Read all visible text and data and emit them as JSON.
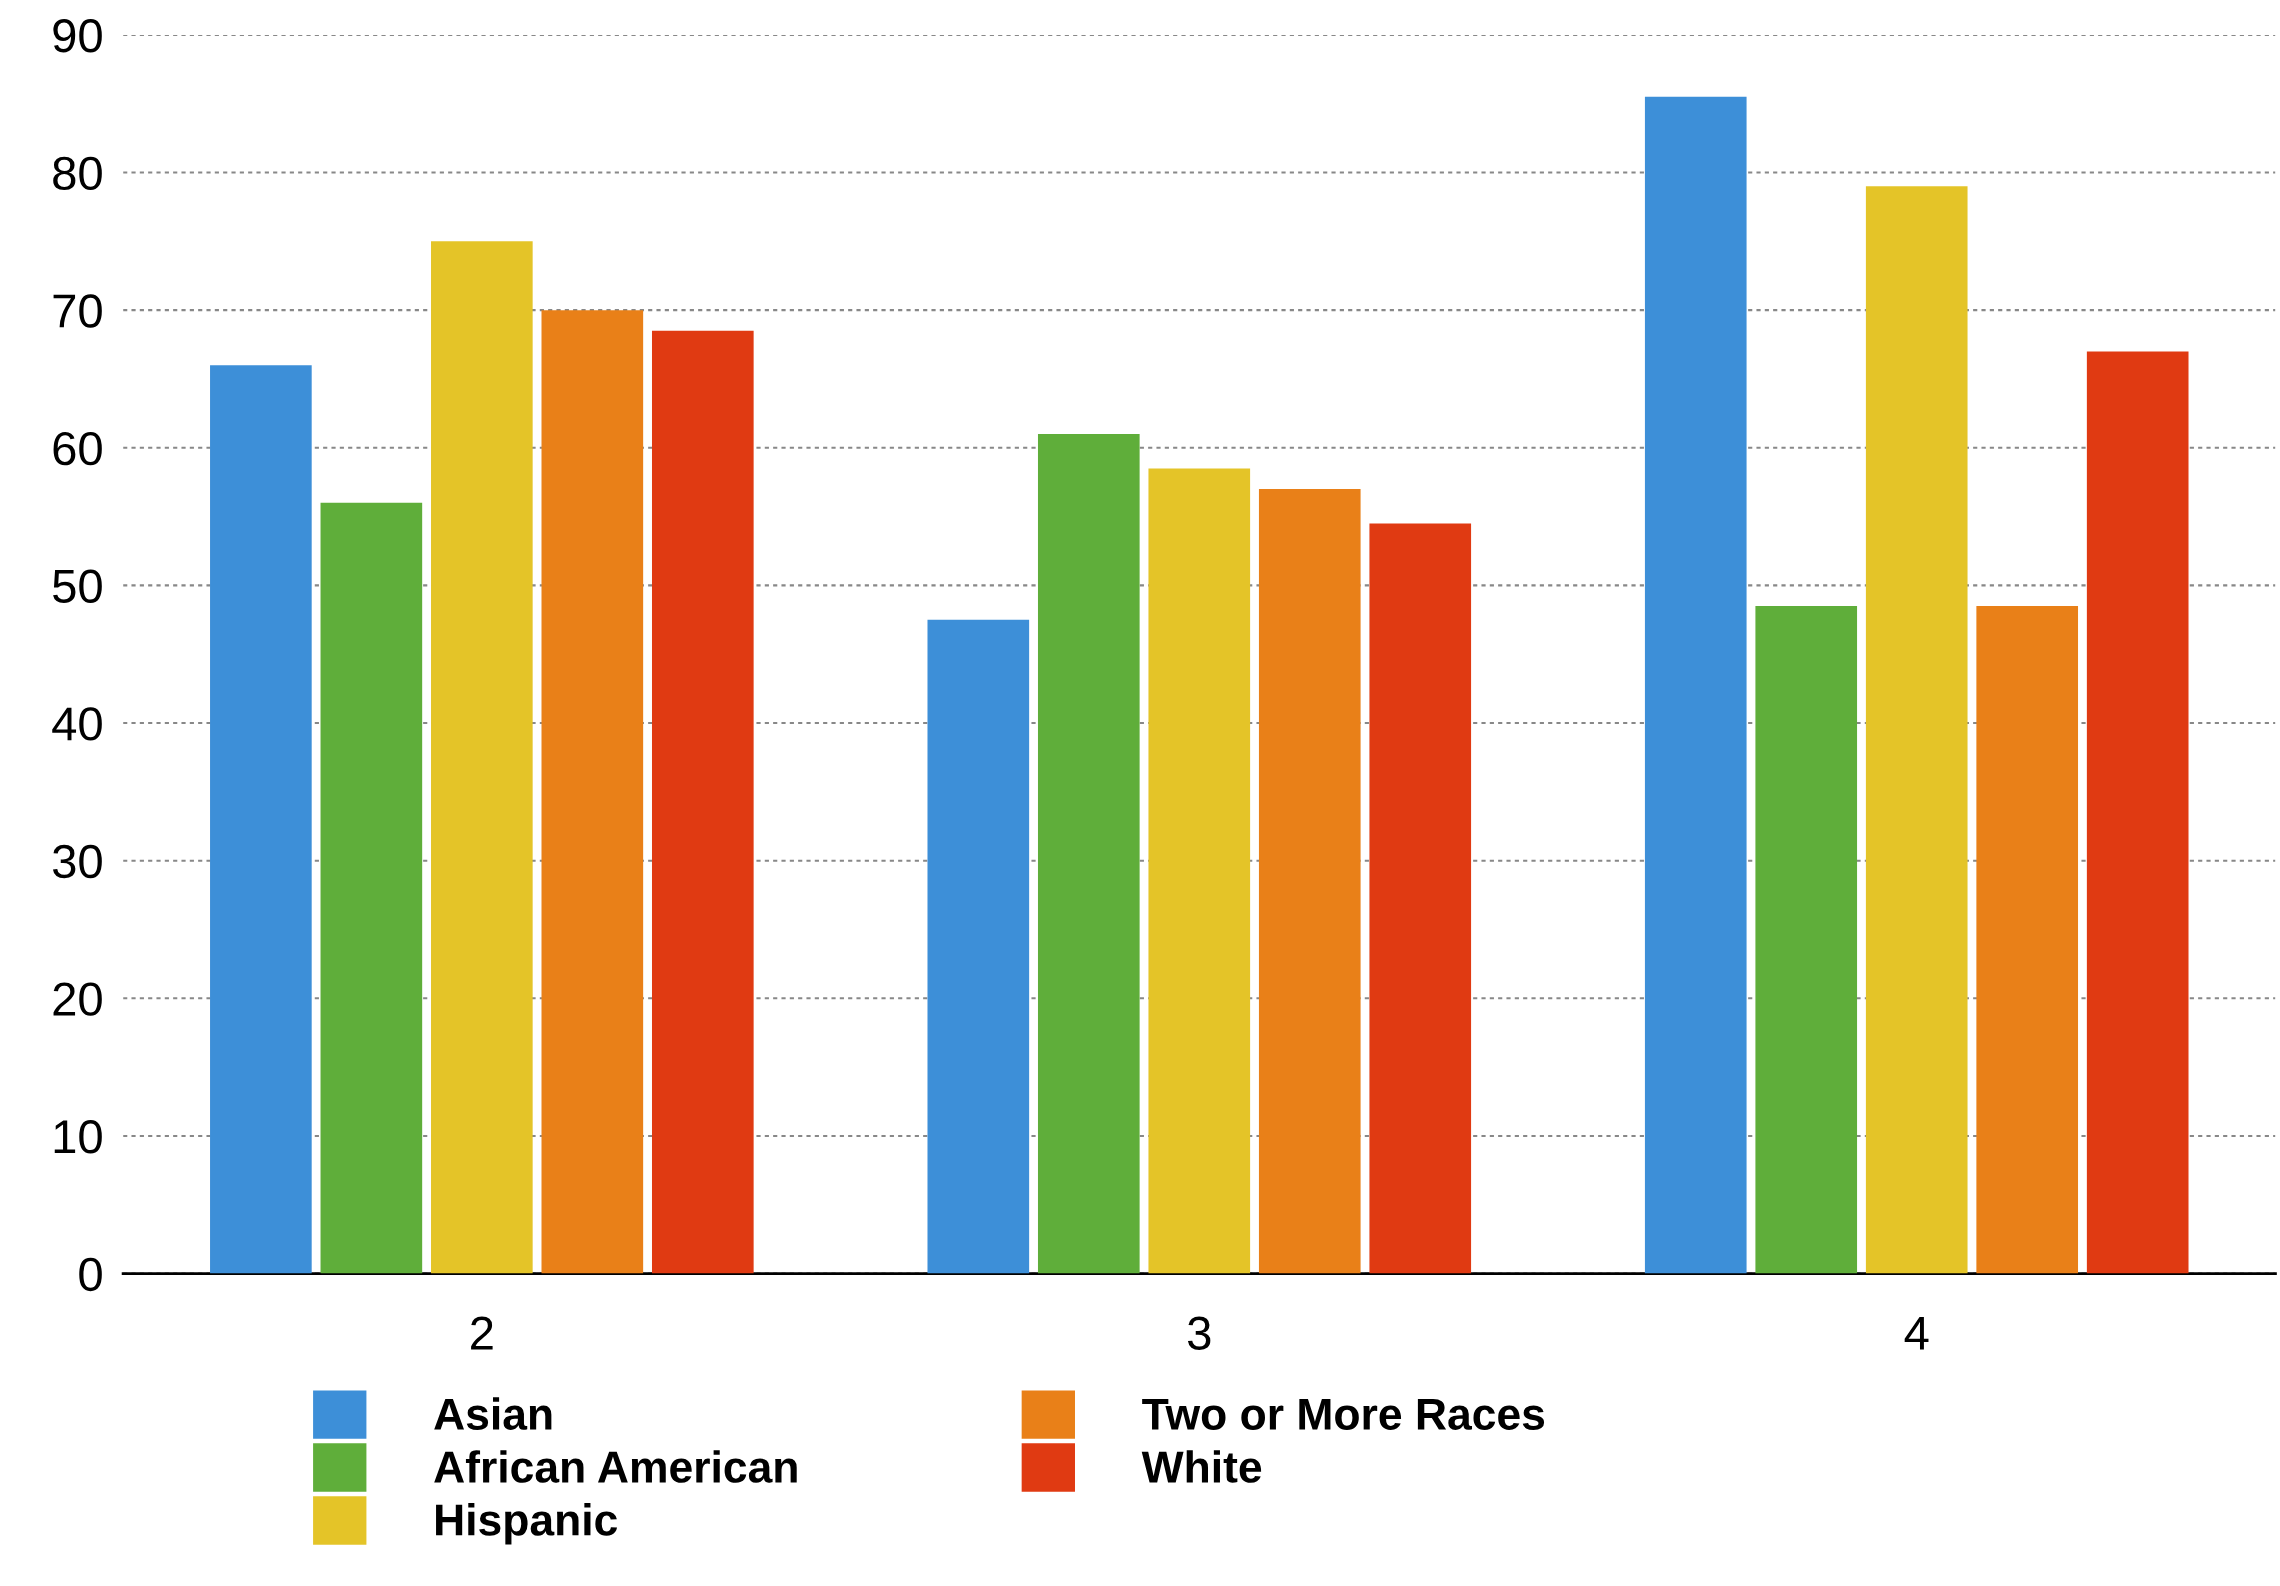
{
  "chart_data": {
    "type": "bar",
    "categories": [
      "2",
      "3",
      "4"
    ],
    "series": [
      {
        "name": "Asian",
        "color": "#3d8fd8",
        "values": [
          66,
          47.5,
          85.5
        ]
      },
      {
        "name": "African American",
        "color": "#5fae3a",
        "values": [
          56,
          61,
          48.5
        ]
      },
      {
        "name": "Hispanic",
        "color": "#e4c428",
        "values": [
          75,
          58.5,
          79
        ]
      },
      {
        "name": "Two or More Races",
        "color": "#e98018",
        "values": [
          70,
          57,
          48.5
        ]
      },
      {
        "name": "White",
        "color": "#e03a12",
        "values": [
          68.5,
          54.5,
          67
        ]
      }
    ],
    "ylim": [
      0,
      90
    ],
    "yticks": [
      0,
      10,
      20,
      30,
      40,
      50,
      60,
      70,
      80,
      90
    ],
    "grid": "y",
    "legend": "bottom"
  }
}
